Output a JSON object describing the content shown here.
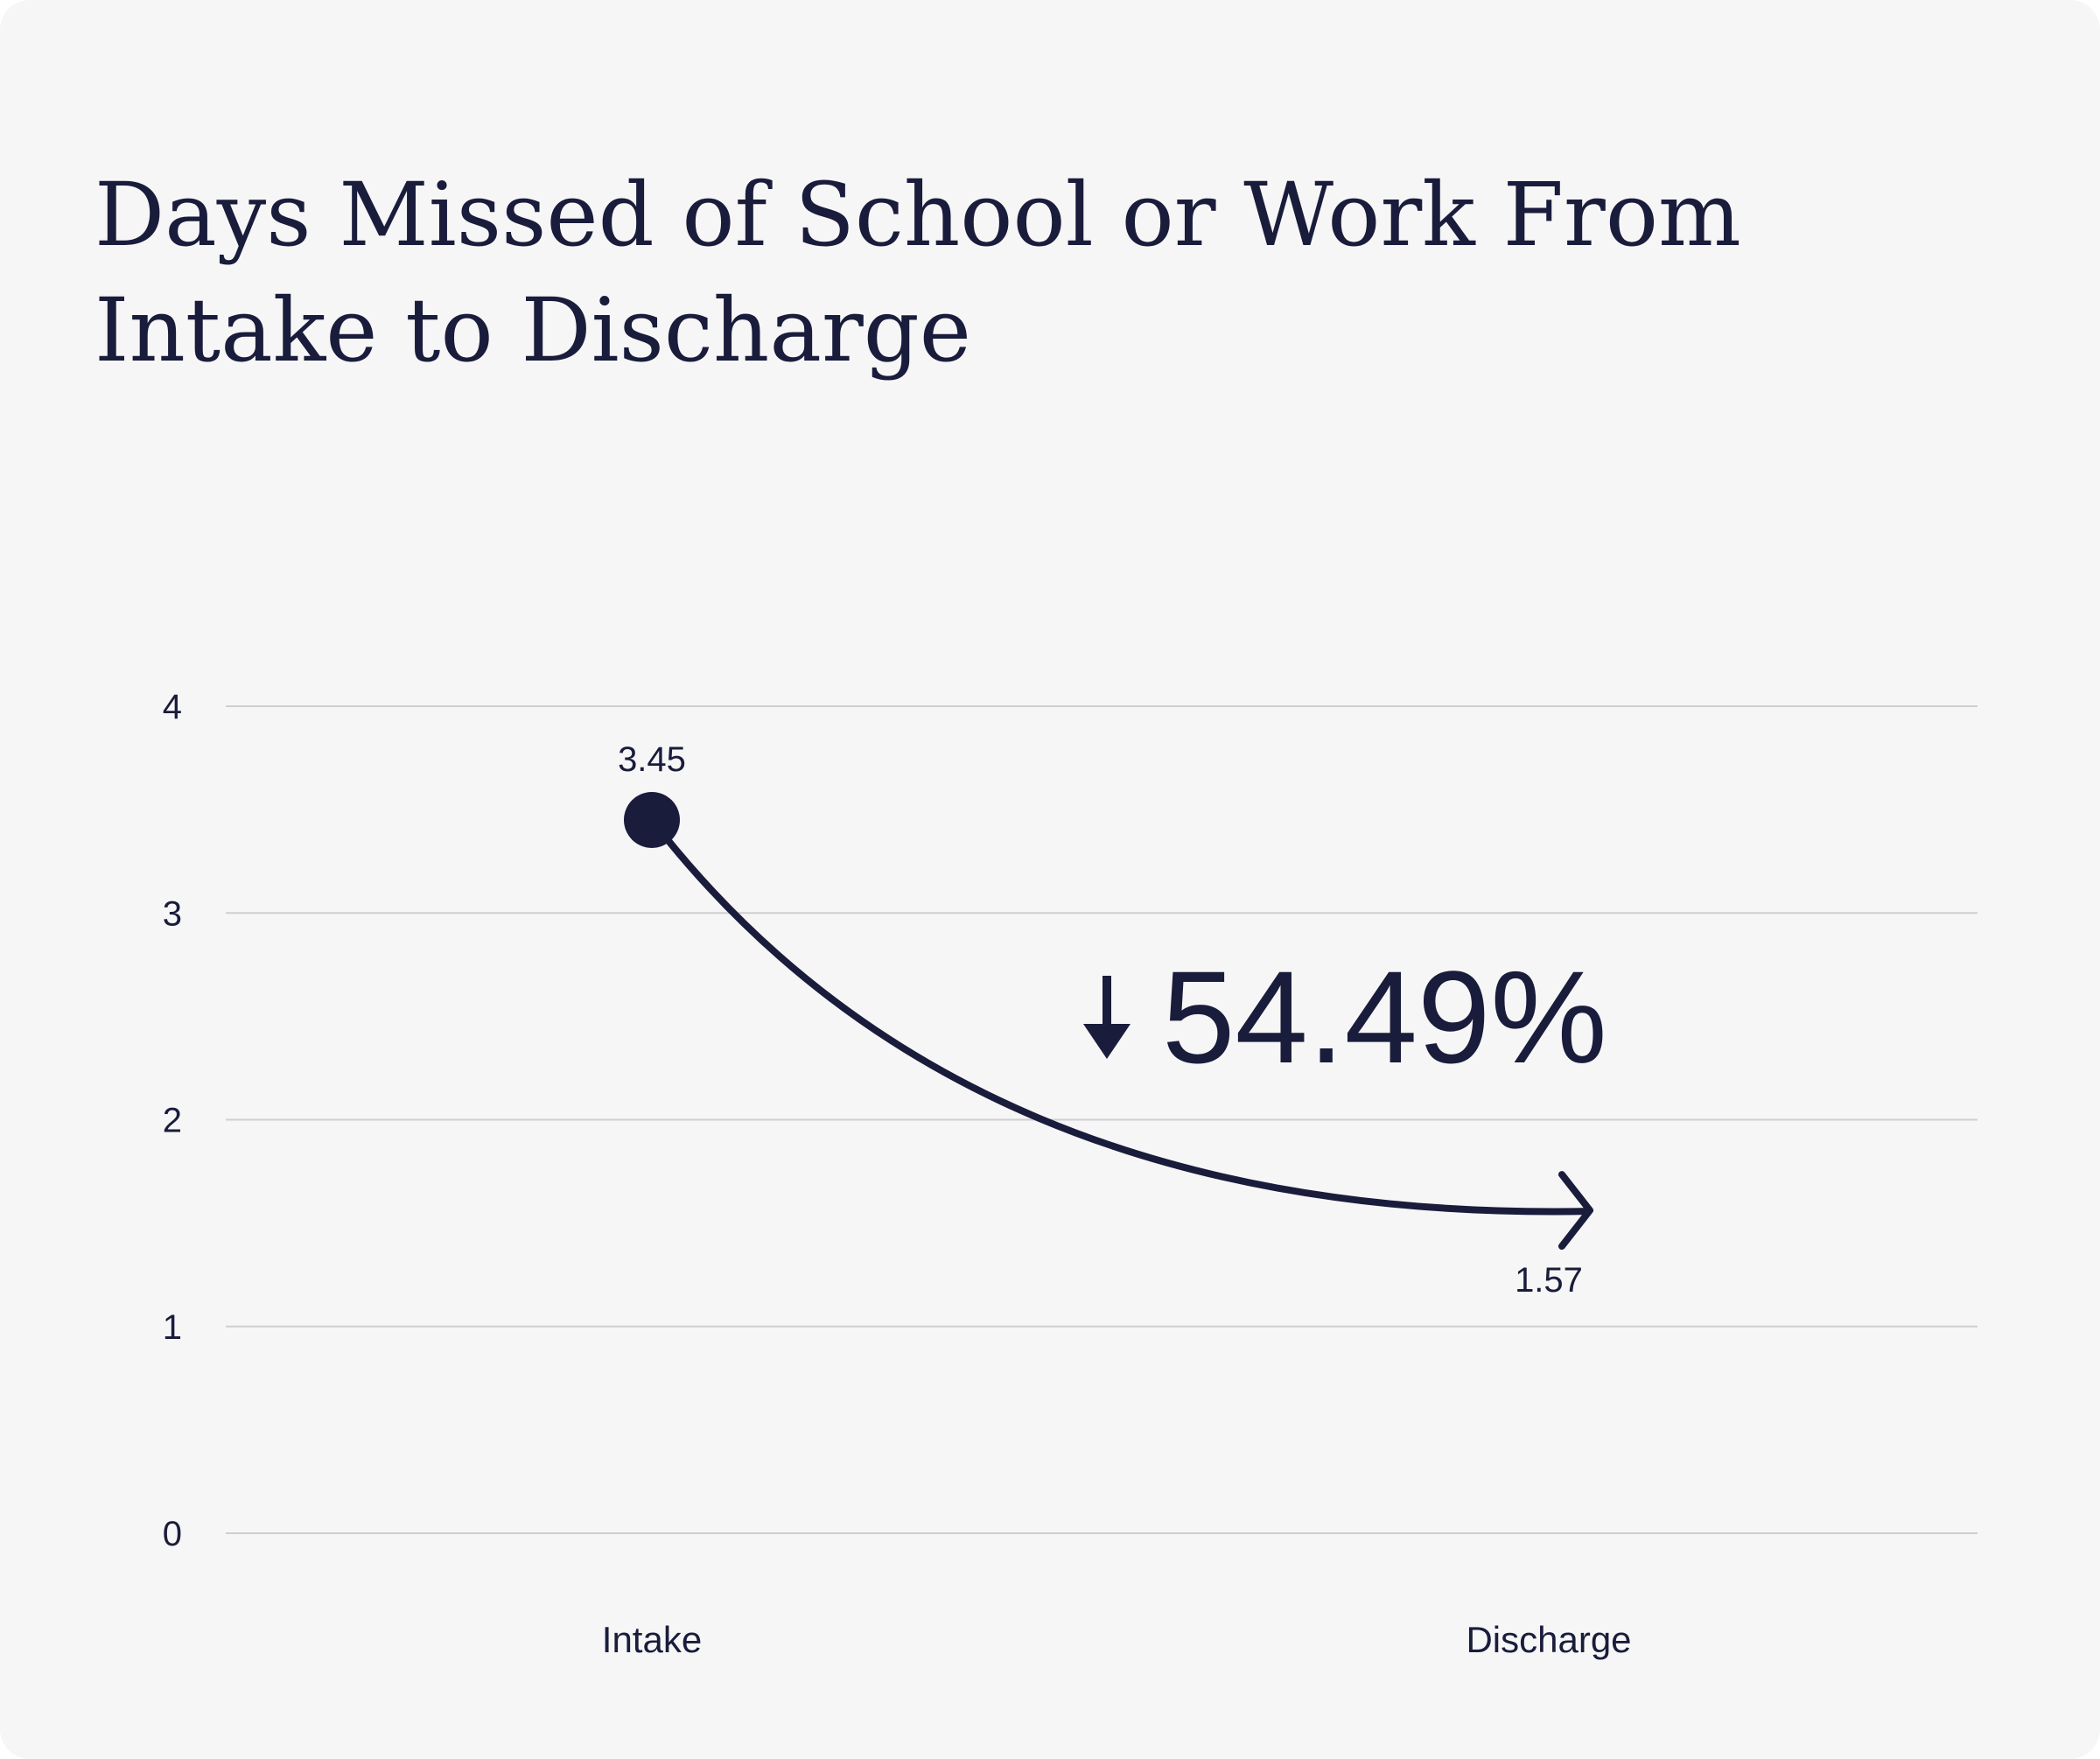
{
  "title_lines": [
    "Days Missed of School or Work From",
    "Intake to Discharge"
  ],
  "colors": {
    "background": "#f6f6f6",
    "ink": "#1a1c3c",
    "grid": "#cfcfd3"
  },
  "chart_data": {
    "type": "line",
    "title": "Days Missed of School or Work From Intake to Discharge",
    "categories": [
      "Intake",
      "Discharge"
    ],
    "series": [
      {
        "values": [
          3.45,
          1.57
        ]
      }
    ],
    "data_labels": [
      "3.45",
      "1.57"
    ],
    "yticks": [
      0,
      1,
      2,
      3,
      4
    ],
    "ylim": [
      0,
      4
    ],
    "grid": true,
    "annotation": {
      "arrow": "down-arrow-icon",
      "text": "54.49%"
    },
    "xlabel": "",
    "ylabel": ""
  }
}
